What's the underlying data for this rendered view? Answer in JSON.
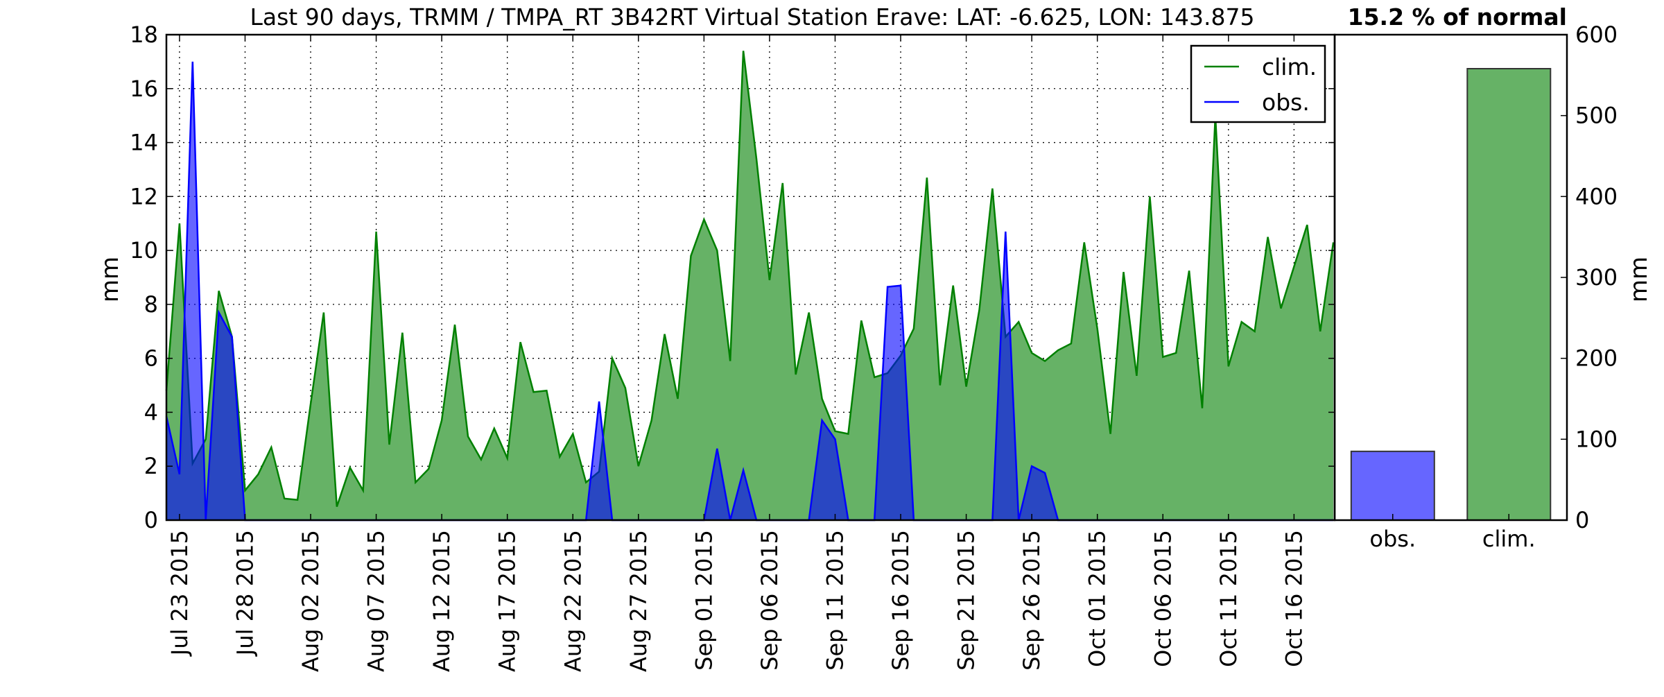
{
  "chart_data": [
    {
      "type": "area",
      "title": "Last 90 days, TRMM / TMPA_RT 3B42RT Virtual Station Erave: LAT: -6.625, LON: 143.875",
      "ylabel": "mm",
      "ylim": [
        0,
        18
      ],
      "yticks": [
        "0",
        "2",
        "4",
        "6",
        "8",
        "10",
        "12",
        "14",
        "16",
        "18"
      ],
      "grid": true,
      "legend": {
        "position": "top-right",
        "entries": [
          "clim.",
          "obs."
        ]
      },
      "x_start": "Jul 22 2015",
      "x_end": "Oct 20 2015",
      "xticks": [
        {
          "date": "2015-07-23",
          "label": "Jul 23 2015"
        },
        {
          "date": "2015-07-28",
          "label": "Jul 28 2015"
        },
        {
          "date": "2015-08-02",
          "label": "Aug 02 2015"
        },
        {
          "date": "2015-08-07",
          "label": "Aug 07 2015"
        },
        {
          "date": "2015-08-12",
          "label": "Aug 12 2015"
        },
        {
          "date": "2015-08-17",
          "label": "Aug 17 2015"
        },
        {
          "date": "2015-08-22",
          "label": "Aug 22 2015"
        },
        {
          "date": "2015-08-27",
          "label": "Aug 27 2015"
        },
        {
          "date": "2015-09-01",
          "label": "Sep 01 2015"
        },
        {
          "date": "2015-09-06",
          "label": "Sep 06 2015"
        },
        {
          "date": "2015-09-11",
          "label": "Sep 11 2015"
        },
        {
          "date": "2015-09-16",
          "label": "Sep 16 2015"
        },
        {
          "date": "2015-09-21",
          "label": "Sep 21 2015"
        },
        {
          "date": "2015-09-26",
          "label": "Sep 26 2015"
        },
        {
          "date": "2015-10-01",
          "label": "Oct 01 2015"
        },
        {
          "date": "2015-10-06",
          "label": "Oct 06 2015"
        },
        {
          "date": "2015-10-11",
          "label": "Oct 11 2015"
        },
        {
          "date": "2015-10-16",
          "label": "Oct 16 2015"
        }
      ],
      "series": [
        {
          "name": "clim.",
          "color": "#008000",
          "fill": "#66b266",
          "values": [
            [
              "2015-07-22",
              4.8
            ],
            [
              "2015-07-23",
              11.0
            ],
            [
              "2015-07-24",
              2.1
            ],
            [
              "2015-07-25",
              3.0
            ],
            [
              "2015-07-26",
              8.5
            ],
            [
              "2015-07-27",
              6.8
            ],
            [
              "2015-07-28",
              1.1
            ],
            [
              "2015-07-29",
              1.7
            ],
            [
              "2015-07-30",
              2.7
            ],
            [
              "2015-07-31",
              0.8
            ],
            [
              "2015-08-01",
              0.75
            ],
            [
              "2015-08-02",
              4.3
            ],
            [
              "2015-08-03",
              7.7
            ],
            [
              "2015-08-04",
              0.5
            ],
            [
              "2015-08-05",
              1.95
            ],
            [
              "2015-08-06",
              1.1
            ],
            [
              "2015-08-07",
              10.7
            ],
            [
              "2015-08-08",
              2.8
            ],
            [
              "2015-08-09",
              6.95
            ],
            [
              "2015-08-10",
              1.4
            ],
            [
              "2015-08-11",
              1.9
            ],
            [
              "2015-08-12",
              3.7
            ],
            [
              "2015-08-13",
              7.25
            ],
            [
              "2015-08-14",
              3.1
            ],
            [
              "2015-08-15",
              2.25
            ],
            [
              "2015-08-16",
              3.4
            ],
            [
              "2015-08-17",
              2.3
            ],
            [
              "2015-08-18",
              6.6
            ],
            [
              "2015-08-19",
              4.75
            ],
            [
              "2015-08-20",
              4.8
            ],
            [
              "2015-08-21",
              2.35
            ],
            [
              "2015-08-22",
              3.2
            ],
            [
              "2015-08-23",
              1.4
            ],
            [
              "2015-08-24",
              1.8
            ],
            [
              "2015-08-25",
              6.0
            ],
            [
              "2015-08-26",
              4.9
            ],
            [
              "2015-08-27",
              2.0
            ],
            [
              "2015-08-28",
              3.7
            ],
            [
              "2015-08-29",
              6.9
            ],
            [
              "2015-08-30",
              4.5
            ],
            [
              "2015-08-31",
              9.8
            ],
            [
              "2015-09-01",
              11.15
            ],
            [
              "2015-09-02",
              10.0
            ],
            [
              "2015-09-03",
              5.9
            ],
            [
              "2015-09-04",
              17.4
            ],
            [
              "2015-09-05",
              13.4
            ],
            [
              "2015-09-06",
              8.9
            ],
            [
              "2015-09-07",
              12.5
            ],
            [
              "2015-09-08",
              5.4
            ],
            [
              "2015-09-09",
              7.7
            ],
            [
              "2015-09-10",
              4.5
            ],
            [
              "2015-09-11",
              3.3
            ],
            [
              "2015-09-12",
              3.2
            ],
            [
              "2015-09-13",
              7.4
            ],
            [
              "2015-09-14",
              5.3
            ],
            [
              "2015-09-15",
              5.45
            ],
            [
              "2015-09-16",
              6.1
            ],
            [
              "2015-09-17",
              7.1
            ],
            [
              "2015-09-18",
              12.7
            ],
            [
              "2015-09-19",
              5.0
            ],
            [
              "2015-09-20",
              8.7
            ],
            [
              "2015-09-21",
              4.95
            ],
            [
              "2015-09-22",
              7.8
            ],
            [
              "2015-09-23",
              12.3
            ],
            [
              "2015-09-24",
              6.8
            ],
            [
              "2015-09-25",
              7.35
            ],
            [
              "2015-09-26",
              6.2
            ],
            [
              "2015-09-27",
              5.9
            ],
            [
              "2015-09-28",
              6.3
            ],
            [
              "2015-09-29",
              6.55
            ],
            [
              "2015-09-30",
              10.3
            ],
            [
              "2015-10-01",
              7.1
            ],
            [
              "2015-10-02",
              3.2
            ],
            [
              "2015-10-03",
              9.2
            ],
            [
              "2015-10-04",
              5.35
            ],
            [
              "2015-10-05",
              12.0
            ],
            [
              "2015-10-06",
              6.05
            ],
            [
              "2015-10-07",
              6.2
            ],
            [
              "2015-10-08",
              9.25
            ],
            [
              "2015-10-09",
              4.15
            ],
            [
              "2015-10-10",
              15.0
            ],
            [
              "2015-10-11",
              5.7
            ],
            [
              "2015-10-12",
              7.35
            ],
            [
              "2015-10-13",
              7.0
            ],
            [
              "2015-10-14",
              10.5
            ],
            [
              "2015-10-15",
              7.85
            ],
            [
              "2015-10-16",
              9.4
            ],
            [
              "2015-10-17",
              10.95
            ],
            [
              "2015-10-18",
              7.0
            ],
            [
              "2015-10-19",
              10.3
            ]
          ]
        },
        {
          "name": "obs.",
          "color": "#0000ff",
          "fill": "#0000ff",
          "values": [
            [
              "2015-07-22",
              3.85
            ],
            [
              "2015-07-23",
              1.7
            ],
            [
              "2015-07-24",
              17.0
            ],
            [
              "2015-07-25",
              0
            ],
            [
              "2015-07-26",
              7.7
            ],
            [
              "2015-07-27",
              6.8
            ],
            [
              "2015-07-28",
              0
            ],
            [
              "2015-07-29",
              0
            ],
            [
              "2015-07-30",
              0
            ],
            [
              "2015-07-31",
              0
            ],
            [
              "2015-08-01",
              0
            ],
            [
              "2015-08-02",
              0
            ],
            [
              "2015-08-03",
              0
            ],
            [
              "2015-08-04",
              0
            ],
            [
              "2015-08-05",
              0
            ],
            [
              "2015-08-06",
              0
            ],
            [
              "2015-08-07",
              0
            ],
            [
              "2015-08-08",
              0
            ],
            [
              "2015-08-09",
              0
            ],
            [
              "2015-08-10",
              0
            ],
            [
              "2015-08-11",
              0
            ],
            [
              "2015-08-12",
              0
            ],
            [
              "2015-08-13",
              0
            ],
            [
              "2015-08-14",
              0
            ],
            [
              "2015-08-15",
              0
            ],
            [
              "2015-08-16",
              0
            ],
            [
              "2015-08-17",
              0
            ],
            [
              "2015-08-18",
              0
            ],
            [
              "2015-08-19",
              0
            ],
            [
              "2015-08-20",
              0
            ],
            [
              "2015-08-21",
              0
            ],
            [
              "2015-08-22",
              0
            ],
            [
              "2015-08-23",
              0
            ],
            [
              "2015-08-24",
              4.4
            ],
            [
              "2015-08-25",
              0
            ],
            [
              "2015-08-26",
              0
            ],
            [
              "2015-08-27",
              0
            ],
            [
              "2015-08-28",
              0
            ],
            [
              "2015-08-29",
              0
            ],
            [
              "2015-08-30",
              0
            ],
            [
              "2015-08-31",
              0
            ],
            [
              "2015-09-01",
              0
            ],
            [
              "2015-09-02",
              2.65
            ],
            [
              "2015-09-03",
              0
            ],
            [
              "2015-09-04",
              1.85
            ],
            [
              "2015-09-05",
              0
            ],
            [
              "2015-09-06",
              0
            ],
            [
              "2015-09-07",
              0
            ],
            [
              "2015-09-08",
              0
            ],
            [
              "2015-09-09",
              0
            ],
            [
              "2015-09-10",
              3.7
            ],
            [
              "2015-09-11",
              3.0
            ],
            [
              "2015-09-12",
              0
            ],
            [
              "2015-09-13",
              0
            ],
            [
              "2015-09-14",
              0
            ],
            [
              "2015-09-15",
              8.65
            ],
            [
              "2015-09-16",
              8.7
            ],
            [
              "2015-09-17",
              0
            ],
            [
              "2015-09-18",
              0
            ],
            [
              "2015-09-19",
              0
            ],
            [
              "2015-09-20",
              0
            ],
            [
              "2015-09-21",
              0
            ],
            [
              "2015-09-22",
              0
            ],
            [
              "2015-09-23",
              0
            ],
            [
              "2015-09-24",
              10.7
            ],
            [
              "2015-09-25",
              0
            ],
            [
              "2015-09-26",
              2.0
            ],
            [
              "2015-09-27",
              1.75
            ],
            [
              "2015-09-28",
              0
            ],
            [
              "2015-09-29",
              0
            ],
            [
              "2015-09-30",
              0
            ],
            [
              "2015-10-01",
              0
            ],
            [
              "2015-10-02",
              0
            ],
            [
              "2015-10-03",
              0
            ],
            [
              "2015-10-04",
              0
            ],
            [
              "2015-10-05",
              0
            ],
            [
              "2015-10-06",
              0
            ],
            [
              "2015-10-07",
              0
            ],
            [
              "2015-10-08",
              0
            ],
            [
              "2015-10-09",
              0
            ],
            [
              "2015-10-10",
              0
            ],
            [
              "2015-10-11",
              0
            ],
            [
              "2015-10-12",
              0
            ],
            [
              "2015-10-13",
              0
            ],
            [
              "2015-10-14",
              0
            ],
            [
              "2015-10-15",
              0
            ],
            [
              "2015-10-16",
              0
            ],
            [
              "2015-10-17",
              0
            ],
            [
              "2015-10-18",
              0
            ],
            [
              "2015-10-19",
              0
            ]
          ]
        }
      ]
    },
    {
      "type": "bar",
      "title": "15.2 % of normal",
      "ylabel": "mm",
      "ylim": [
        0,
        600
      ],
      "yticks": [
        "0",
        "100",
        "200",
        "300",
        "400",
        "500",
        "600"
      ],
      "grid": false,
      "categories": [
        "obs.",
        "clim."
      ],
      "values": [
        85,
        558
      ],
      "colors": [
        "#6666ff",
        "#66b266"
      ]
    }
  ]
}
